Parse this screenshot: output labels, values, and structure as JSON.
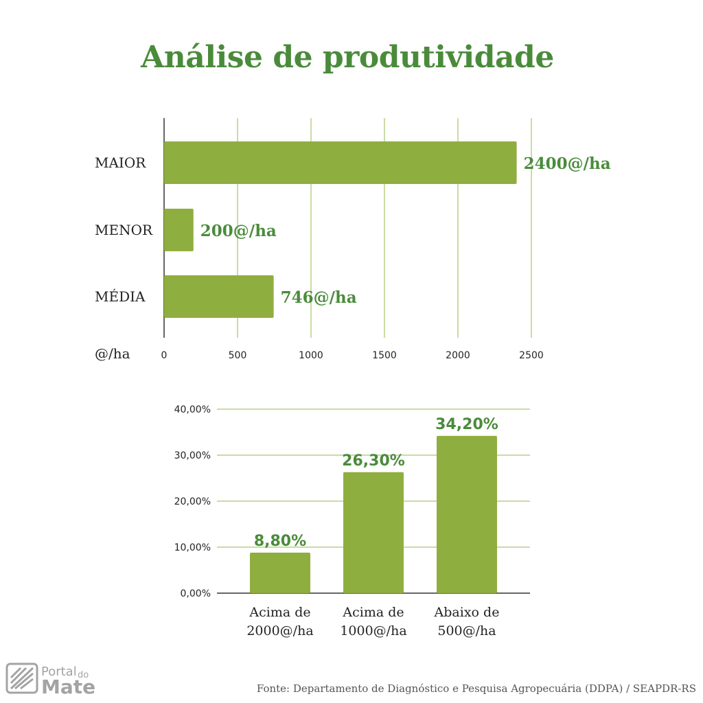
{
  "title": "Análise de produtividade",
  "colors": {
    "accent": "#4a8b3b",
    "bar": "#8fae40",
    "grid": "#b9cf86"
  },
  "chart_data": [
    {
      "type": "bar",
      "orientation": "horizontal",
      "title": "Análise de produtividade",
      "categories": [
        "MAIOR",
        "MENOR",
        "MÉDIA"
      ],
      "values": [
        2400,
        200,
        746
      ],
      "data_labels": [
        "2400@/ha",
        "200@/ha",
        "746@/ha"
      ],
      "xlabel": "@/ha",
      "xlim": [
        0,
        2500
      ],
      "xticks": [
        "0",
        "500",
        "1000",
        "1500",
        "2000",
        "2500"
      ],
      "grid": true
    },
    {
      "type": "bar",
      "orientation": "vertical",
      "categories": [
        [
          "Acima de",
          "2000@/ha"
        ],
        [
          "Acima de",
          "1000@/ha"
        ],
        [
          "Abaixo de",
          "500@/ha"
        ]
      ],
      "values": [
        8.8,
        26.3,
        34.2
      ],
      "data_labels": [
        "8,80%",
        "26,30%",
        "34,20%"
      ],
      "ylim": [
        0,
        40
      ],
      "yticks": [
        "0,00%",
        "10,00%",
        "20,00%",
        "30,00%",
        "40,00%"
      ],
      "grid": true
    }
  ],
  "logo": {
    "line1": "Portal",
    "line2": "do",
    "line3": "Mate"
  },
  "source": "Fonte: Departamento de Diagnóstico e Pesquisa Agropecuária (DDPA) / SEAPDR-RS"
}
